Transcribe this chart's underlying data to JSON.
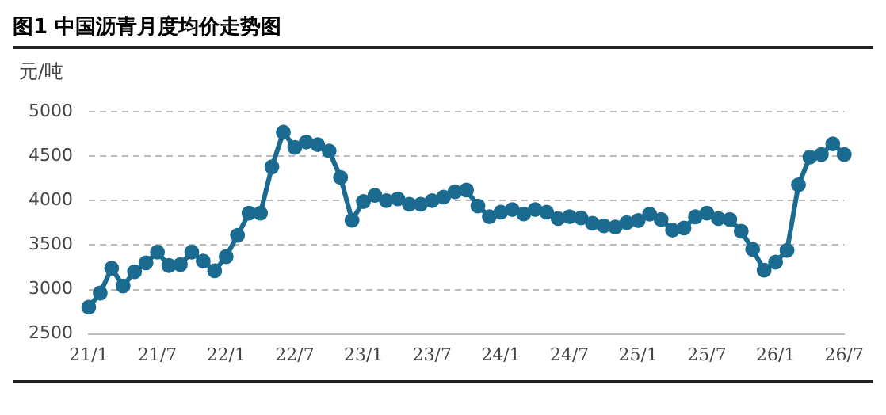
{
  "chart_data": {
    "type": "line",
    "title": "图1 中国沥青月度均价走势图",
    "ylabel": "元/吨",
    "categories": [
      "21/1",
      null,
      null,
      null,
      null,
      null,
      "21/7",
      null,
      null,
      null,
      null,
      null,
      "22/1",
      null,
      null,
      null,
      null,
      null,
      "22/7",
      null,
      null,
      null,
      null,
      null,
      "23/1",
      null,
      null,
      null,
      null,
      null,
      "23/7",
      null,
      null,
      null,
      null,
      null,
      "24/1",
      null,
      null,
      null,
      null,
      null,
      "24/7",
      null,
      null,
      null,
      null,
      null,
      "25/1",
      null,
      null,
      null,
      null,
      null,
      "25/7",
      null,
      null,
      null,
      null,
      null,
      "26/1",
      null,
      null,
      null,
      null,
      null,
      "26/7"
    ],
    "series": [
      {
        "color": "#1b6a8f",
        "values": [
          2800,
          2960,
          3240,
          3040,
          3200,
          3300,
          3420,
          3270,
          3280,
          3420,
          3320,
          3210,
          3370,
          3610,
          3860,
          3860,
          4380,
          4770,
          4600,
          4660,
          4630,
          4560,
          4260,
          3780,
          3990,
          4060,
          4000,
          4020,
          3960,
          3960,
          4000,
          4040,
          4100,
          4120,
          3940,
          3820,
          3870,
          3900,
          3850,
          3900,
          3870,
          3800,
          3820,
          3806,
          3746,
          3716,
          3704,
          3752,
          3776,
          3848,
          3788,
          3668,
          3692,
          3818,
          3860,
          3800,
          3788,
          3656,
          3452,
          3218,
          3308,
          3440,
          4178,
          4490,
          4520,
          4640,
          4520
        ]
      }
    ],
    "ylim": [
      2500,
      5000
    ],
    "yticks": [
      2500,
      3000,
      3500,
      4000,
      4500,
      5000
    ],
    "grid": "y",
    "legend": false,
    "marker": "circle",
    "line_style": "solid"
  }
}
